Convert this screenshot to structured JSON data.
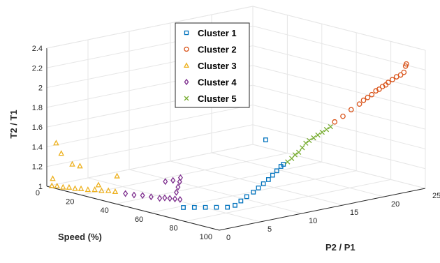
{
  "chart_data": {
    "type": "scatter",
    "projection": "3d",
    "title": "",
    "axes": {
      "x": {
        "label": "Speed (%)",
        "range": [
          0,
          100
        ],
        "ticks": [
          "0",
          "20",
          "40",
          "60",
          "80",
          "100"
        ]
      },
      "y": {
        "label": "P2 / P1",
        "range": [
          0,
          25
        ],
        "ticks": [
          "0",
          "5",
          "10",
          "15",
          "20",
          "25"
        ]
      },
      "z": {
        "label": "T2 / T1",
        "range": [
          1,
          2.4
        ],
        "ticks": [
          "1",
          "1.2",
          "1.4",
          "1.6",
          "1.8",
          "2",
          "2.2",
          "2.4"
        ]
      }
    },
    "grid": true,
    "legend_position": "top-center",
    "series": [
      {
        "name": "Cluster 1",
        "color": "#0072BD",
        "marker": "square",
        "points": [
          [
            72,
            1.5,
            1.08
          ],
          [
            76,
            2,
            1.09
          ],
          [
            80,
            2.5,
            1.1
          ],
          [
            84,
            3,
            1.11
          ],
          [
            88,
            3.5,
            1.12
          ],
          [
            90,
            4,
            1.14
          ],
          [
            91,
            4.5,
            1.18
          ],
          [
            92,
            5,
            1.22
          ],
          [
            93,
            5.6,
            1.26
          ],
          [
            94,
            6,
            1.3
          ],
          [
            95,
            6.4,
            1.34
          ],
          [
            96,
            6.8,
            1.38
          ],
          [
            96.5,
            7.2,
            1.42
          ],
          [
            97,
            7.6,
            1.46
          ],
          [
            97.5,
            8,
            1.5
          ],
          [
            98,
            8.2,
            1.52
          ],
          [
            60,
            14,
            1.5
          ]
        ]
      },
      {
        "name": "Cluster 2",
        "color": "#D95319",
        "marker": "circle",
        "points": [
          [
            100,
            14,
            1.86
          ],
          [
            100,
            15,
            1.9
          ],
          [
            100,
            16,
            1.95
          ],
          [
            100,
            17,
            1.99
          ],
          [
            100,
            17.5,
            2.02
          ],
          [
            100,
            18,
            2.04
          ],
          [
            100,
            18.5,
            2.06
          ],
          [
            100,
            19,
            2.09
          ],
          [
            100,
            19.4,
            2.1
          ],
          [
            100,
            19.8,
            2.12
          ],
          [
            100,
            20.2,
            2.13
          ],
          [
            100,
            20.5,
            2.15
          ],
          [
            100,
            21,
            2.17
          ],
          [
            100,
            21.5,
            2.19
          ],
          [
            100,
            22,
            2.2
          ],
          [
            100,
            22.4,
            2.22
          ],
          [
            100,
            22.6,
            2.28
          ],
          [
            100,
            22.7,
            2.3
          ]
        ]
      },
      {
        "name": "Cluster 3",
        "color": "#EDB120",
        "marker": "triangle",
        "points": [
          [
            2,
            0.2,
            1.01
          ],
          [
            5,
            0.2,
            1.02
          ],
          [
            8,
            0.3,
            1.02
          ],
          [
            11,
            0.4,
            1.03
          ],
          [
            14,
            0.5,
            1.03
          ],
          [
            17,
            0.6,
            1.04
          ],
          [
            20,
            0.8,
            1.04
          ],
          [
            23,
            1,
            1.05
          ],
          [
            26,
            1.2,
            1.05
          ],
          [
            29,
            1.4,
            1.06
          ],
          [
            32,
            1.6,
            1.06
          ],
          [
            4,
            0.3,
            1.45
          ],
          [
            6,
            0.5,
            1.35
          ],
          [
            10,
            1,
            1.25
          ],
          [
            13,
            1.3,
            1.24
          ],
          [
            24,
            3.5,
            1.15
          ],
          [
            2,
            0.3,
            1.08
          ],
          [
            18,
            2.5,
            1.05
          ]
        ]
      },
      {
        "name": "Cluster 4",
        "color": "#7E2F8E",
        "marker": "diamond",
        "points": [
          [
            37,
            1.8,
            1.06
          ],
          [
            41,
            2,
            1.06
          ],
          [
            45,
            2.2,
            1.07
          ],
          [
            49,
            2.4,
            1.07
          ],
          [
            53,
            2.6,
            1.07
          ],
          [
            55,
            2.8,
            1.08
          ],
          [
            57,
            3,
            1.08
          ],
          [
            59,
            3.2,
            1.08
          ],
          [
            61,
            3.4,
            1.08
          ],
          [
            56,
            4,
            1.12
          ],
          [
            56,
            4.2,
            1.17
          ],
          [
            56,
            4.4,
            1.22
          ],
          [
            56,
            4.5,
            1.26
          ],
          [
            52,
            3.5,
            1.22
          ],
          [
            55,
            3.8,
            1.24
          ]
        ]
      },
      {
        "name": "Cluster 5",
        "color": "#77AC30",
        "marker": "x",
        "points": [
          [
            98.5,
            8.6,
            1.54
          ],
          [
            99,
            9,
            1.57
          ],
          [
            99,
            9.4,
            1.6
          ],
          [
            99.2,
            9.8,
            1.62
          ],
          [
            99.4,
            10.2,
            1.66
          ],
          [
            99.5,
            10.6,
            1.7
          ],
          [
            99.6,
            11,
            1.72
          ],
          [
            99.7,
            11.5,
            1.74
          ],
          [
            99.8,
            12,
            1.76
          ],
          [
            99.9,
            12.5,
            1.78
          ],
          [
            100,
            13,
            1.8
          ],
          [
            100,
            13.5,
            1.82
          ]
        ]
      }
    ]
  }
}
